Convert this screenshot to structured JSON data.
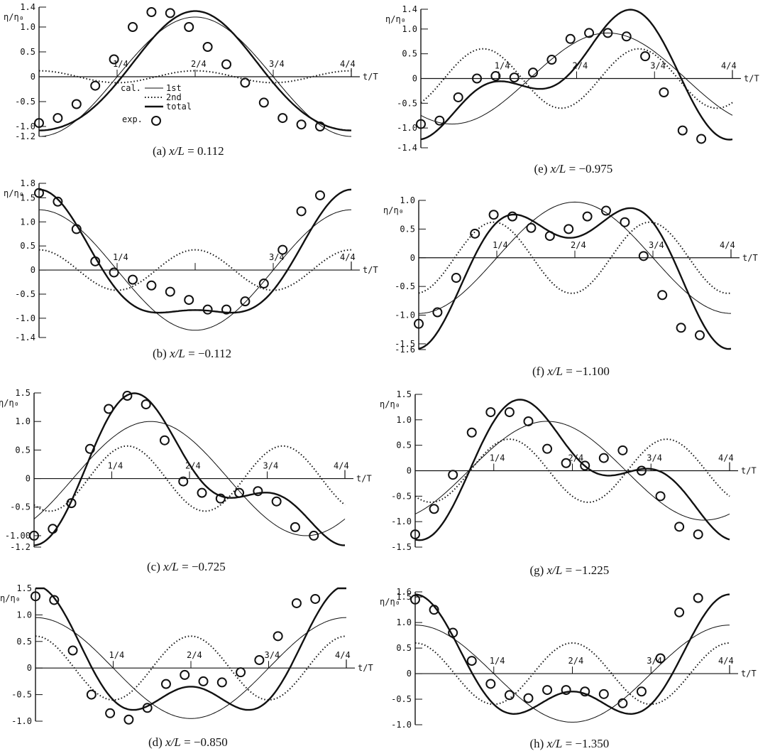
{
  "figure": {
    "y_axis_label": "η/η₀",
    "x_axis_label": "t/T",
    "legend": {
      "cal_label": "cal.",
      "first_label": "1st",
      "second_label": "2nd",
      "total_label": "total",
      "exp_label": "exp."
    },
    "x_tick_labels": [
      "1/4",
      "2/4",
      "3/4",
      "4/4"
    ]
  },
  "chart_data": [
    {
      "panel": "a",
      "type": "line",
      "caption_prefix": "(a) ",
      "caption_var": "x/L",
      "caption_value": "= 0.112",
      "xlim": [
        0,
        1
      ],
      "ylim": [
        -1.2,
        1.4
      ],
      "y_ticks": [
        1.4,
        1.0,
        0.5,
        0,
        -0.5,
        -1.0,
        -1.2
      ],
      "y_tick_labels": [
        "1.4",
        "1.0",
        "0.5",
        "0",
        "-0.5",
        "-1.0",
        "-1.2"
      ],
      "x_tick_labels": [
        "1/4",
        "2/4",
        "3/4",
        "4/4"
      ],
      "series": [
        {
          "name": "1st",
          "style": "thin",
          "A1": 1.2,
          "p1": 0.5
        },
        {
          "name": "2nd",
          "style": "dotted",
          "A2": 0.12,
          "p2": 0.5
        },
        {
          "name": "total",
          "style": "thick"
        }
      ],
      "exp": [
        [
          0,
          -0.93
        ],
        [
          0.06,
          -0.83
        ],
        [
          0.12,
          -0.55
        ],
        [
          0.18,
          -0.18
        ],
        [
          0.24,
          0.35
        ],
        [
          0.3,
          1.0
        ],
        [
          0.36,
          1.3
        ],
        [
          0.42,
          1.28
        ],
        [
          0.48,
          1.0
        ],
        [
          0.54,
          0.6
        ],
        [
          0.6,
          0.25
        ],
        [
          0.66,
          -0.12
        ],
        [
          0.72,
          -0.52
        ],
        [
          0.78,
          -0.83
        ],
        [
          0.84,
          -0.96
        ],
        [
          0.9,
          -1.0
        ]
      ],
      "show_legend": true
    },
    {
      "panel": "b",
      "type": "line",
      "caption_prefix": "(b) ",
      "caption_var": "x/L",
      "caption_value": "= −0.112",
      "xlim": [
        0,
        1
      ],
      "ylim": [
        -1.4,
        1.8
      ],
      "y_ticks": [
        1.8,
        1.5,
        1.0,
        0.5,
        0,
        -0.5,
        -1.0,
        -1.4
      ],
      "y_tick_labels": [
        "1.8",
        "1.5",
        "1.0",
        "0.5",
        "0",
        "-0.5",
        "-1.0",
        "-1.4"
      ],
      "x_tick_labels": [
        "1/4",
        "",
        "3/4",
        "4/4"
      ],
      "series": [
        {
          "name": "1st",
          "style": "thin",
          "A1": 1.25,
          "p1": 0.0
        },
        {
          "name": "2nd",
          "style": "dotted",
          "A2": 0.42,
          "p2": 0.0
        },
        {
          "name": "total",
          "style": "thick"
        }
      ],
      "exp": [
        [
          0,
          1.6
        ],
        [
          0.06,
          1.42
        ],
        [
          0.12,
          0.85
        ],
        [
          0.18,
          0.18
        ],
        [
          0.24,
          -0.05
        ],
        [
          0.3,
          -0.2
        ],
        [
          0.36,
          -0.32
        ],
        [
          0.42,
          -0.45
        ],
        [
          0.48,
          -0.62
        ],
        [
          0.54,
          -0.82
        ],
        [
          0.6,
          -0.82
        ],
        [
          0.66,
          -0.65
        ],
        [
          0.72,
          -0.28
        ],
        [
          0.78,
          0.42
        ],
        [
          0.84,
          1.22
        ],
        [
          0.9,
          1.55
        ]
      ],
      "show_legend": false
    },
    {
      "panel": "c",
      "type": "line",
      "caption_prefix": "(c) ",
      "caption_var": "x/L",
      "caption_value": "= −0.725",
      "xlim": [
        0,
        1
      ],
      "ylim": [
        -1.2,
        1.5
      ],
      "y_ticks": [
        1.5,
        1.0,
        0.5,
        0,
        -0.5,
        -1.0,
        -1.2
      ],
      "y_tick_labels": [
        "1.5",
        "1.0",
        "0.5",
        "0",
        "-0.5",
        "-1.00",
        "-1.2"
      ],
      "x_tick_labels": [
        "1/4",
        "2/4",
        "3/4",
        "4/4"
      ],
      "series": [
        {
          "name": "1st",
          "style": "thin",
          "A1": 1.0,
          "p1": 0.375
        },
        {
          "name": "2nd",
          "style": "dotted",
          "A2": 0.57,
          "p2": 0.3
        },
        {
          "name": "total",
          "style": "thick"
        }
      ],
      "exp": [
        [
          0,
          -1.0
        ],
        [
          0.06,
          -0.88
        ],
        [
          0.12,
          -0.43
        ],
        [
          0.18,
          0.52
        ],
        [
          0.24,
          1.22
        ],
        [
          0.3,
          1.45
        ],
        [
          0.36,
          1.3
        ],
        [
          0.42,
          0.67
        ],
        [
          0.48,
          -0.05
        ],
        [
          0.54,
          -0.25
        ],
        [
          0.6,
          -0.35
        ],
        [
          0.66,
          -0.25
        ],
        [
          0.72,
          -0.22
        ],
        [
          0.78,
          -0.4
        ],
        [
          0.84,
          -0.85
        ],
        [
          0.9,
          -1.0
        ]
      ],
      "show_legend": false
    },
    {
      "panel": "d",
      "type": "line",
      "caption_prefix": "(d) ",
      "caption_var": "x/L",
      "caption_value": "= −0.850",
      "xlim": [
        0,
        1
      ],
      "ylim": [
        -1.0,
        1.5
      ],
      "y_ticks": [
        1.5,
        1.0,
        0.5,
        0,
        -0.5,
        -1.0
      ],
      "y_tick_labels": [
        "1.5",
        "1.0",
        "0.5",
        "0",
        "-0.5",
        "-1.0"
      ],
      "x_tick_labels": [
        "1/4",
        "2/4",
        "3/4",
        "4/4"
      ],
      "series": [
        {
          "name": "1st",
          "style": "thin",
          "A1": 0.95,
          "p1": 0.0
        },
        {
          "name": "2nd",
          "style": "dotted",
          "A2": 0.6,
          "p2": 0.0
        },
        {
          "name": "total",
          "style": "thick"
        }
      ],
      "exp": [
        [
          0,
          1.35
        ],
        [
          0.06,
          1.28
        ],
        [
          0.12,
          0.33
        ],
        [
          0.18,
          -0.5
        ],
        [
          0.24,
          -0.85
        ],
        [
          0.3,
          -0.97
        ],
        [
          0.36,
          -0.75
        ],
        [
          0.42,
          -0.3
        ],
        [
          0.48,
          -0.13
        ],
        [
          0.54,
          -0.25
        ],
        [
          0.6,
          -0.27
        ],
        [
          0.66,
          -0.08
        ],
        [
          0.72,
          0.15
        ],
        [
          0.78,
          0.6
        ],
        [
          0.84,
          1.22
        ],
        [
          0.9,
          1.3
        ]
      ],
      "show_legend": false
    },
    {
      "panel": "e",
      "type": "line",
      "caption_prefix": "(e) ",
      "caption_var": "x/L",
      "caption_value": "= −0.975",
      "xlim": [
        0,
        1
      ],
      "ylim": [
        -1.4,
        1.4
      ],
      "y_ticks": [
        1.4,
        1.0,
        0.5,
        0,
        -0.5,
        -1.0,
        -1.4
      ],
      "y_tick_labels": [
        "1.4",
        "1.0",
        "0.5",
        "0",
        "-0.5",
        "-1.0",
        "-1.4"
      ],
      "x_tick_labels": [
        "1/4",
        "2/4",
        "3/4",
        "4/4"
      ],
      "series": [
        {
          "name": "1st",
          "style": "thin",
          "A1": 0.92,
          "p1": 0.6
        },
        {
          "name": "2nd",
          "style": "dotted",
          "A2": 0.6,
          "p2": 0.2
        },
        {
          "name": "total",
          "style": "thick"
        }
      ],
      "exp": [
        [
          0,
          -0.92
        ],
        [
          0.06,
          -0.85
        ],
        [
          0.12,
          -0.38
        ],
        [
          0.18,
          0.0
        ],
        [
          0.24,
          0.05
        ],
        [
          0.3,
          0.02
        ],
        [
          0.36,
          0.12
        ],
        [
          0.42,
          0.38
        ],
        [
          0.48,
          0.8
        ],
        [
          0.54,
          0.92
        ],
        [
          0.6,
          0.92
        ],
        [
          0.66,
          0.85
        ],
        [
          0.72,
          0.45
        ],
        [
          0.78,
          -0.28
        ],
        [
          0.84,
          -1.05
        ],
        [
          0.9,
          -1.22
        ]
      ],
      "show_legend": false
    },
    {
      "panel": "f",
      "type": "line",
      "caption_prefix": "(f) ",
      "caption_var": "x/L",
      "caption_value": "= −1.100",
      "xlim": [
        0,
        1
      ],
      "ylim": [
        -1.6,
        1.0
      ],
      "y_ticks": [
        1.0,
        0.5,
        0,
        -0.5,
        -1.0,
        -1.5,
        -1.6
      ],
      "y_tick_labels": [
        "1.0",
        "0.5",
        "0",
        "-0.5",
        "-1.0",
        "-1.5",
        "-1.6"
      ],
      "x_tick_labels": [
        "1/4",
        "2/4",
        "3/4",
        "4/4"
      ],
      "series": [
        {
          "name": "1st",
          "style": "thin",
          "A1": 0.97,
          "p1": 0.5
        },
        {
          "name": "2nd",
          "style": "dotted",
          "A2": 0.62,
          "p2": 0.24
        },
        {
          "name": "total",
          "style": "thick"
        }
      ],
      "exp": [
        [
          0,
          -1.15
        ],
        [
          0.06,
          -0.95
        ],
        [
          0.12,
          -0.35
        ],
        [
          0.18,
          0.42
        ],
        [
          0.24,
          0.75
        ],
        [
          0.3,
          0.72
        ],
        [
          0.36,
          0.52
        ],
        [
          0.42,
          0.38
        ],
        [
          0.48,
          0.5
        ],
        [
          0.54,
          0.72
        ],
        [
          0.6,
          0.82
        ],
        [
          0.66,
          0.62
        ],
        [
          0.72,
          0.03
        ],
        [
          0.78,
          -0.65
        ],
        [
          0.84,
          -1.22
        ],
        [
          0.9,
          -1.35
        ]
      ],
      "show_legend": false
    },
    {
      "panel": "g",
      "type": "line",
      "caption_prefix": "(g) ",
      "caption_var": "x/L",
      "caption_value": "= −1.225",
      "xlim": [
        0,
        1
      ],
      "ylim": [
        -1.5,
        1.5
      ],
      "y_ticks": [
        1.5,
        1.0,
        0.5,
        0,
        -0.5,
        -1.0,
        -1.5
      ],
      "y_tick_labels": [
        "1.5",
        "1.0",
        "0.5",
        "0",
        "-0.5",
        "-1.0",
        "-1.5"
      ],
      "x_tick_labels": [
        "1/4",
        "2/4",
        "3/4",
        "4/4"
      ],
      "series": [
        {
          "name": "1st",
          "style": "thin",
          "A1": 0.97,
          "p1": 0.42
        },
        {
          "name": "2nd",
          "style": "dotted",
          "A2": 0.62,
          "p2": 0.3
        },
        {
          "name": "total",
          "style": "thick"
        }
      ],
      "exp": [
        [
          0,
          -1.25
        ],
        [
          0.06,
          -0.75
        ],
        [
          0.12,
          -0.08
        ],
        [
          0.18,
          0.75
        ],
        [
          0.24,
          1.15
        ],
        [
          0.3,
          1.15
        ],
        [
          0.36,
          0.97
        ],
        [
          0.42,
          0.43
        ],
        [
          0.48,
          0.15
        ],
        [
          0.54,
          0.1
        ],
        [
          0.6,
          0.25
        ],
        [
          0.66,
          0.4
        ],
        [
          0.72,
          0.0
        ],
        [
          0.78,
          -0.5
        ],
        [
          0.84,
          -1.1
        ],
        [
          0.9,
          -1.25
        ]
      ],
      "show_legend": false
    },
    {
      "panel": "h",
      "type": "line",
      "caption_prefix": "(h) ",
      "caption_var": "x/L",
      "caption_value": "= −1.350",
      "xlim": [
        0,
        1
      ],
      "ylim": [
        -1.0,
        1.6
      ],
      "y_ticks": [
        1.6,
        1.5,
        1.0,
        0.5,
        0,
        -0.5,
        -1.0
      ],
      "y_tick_labels": [
        "1.6",
        "1.5",
        "1.0",
        "0.5",
        "0",
        "-0.5",
        "-1.0"
      ],
      "x_tick_labels": [
        "1/4",
        "2/4",
        "3/4",
        "4/4"
      ],
      "series": [
        {
          "name": "1st",
          "style": "thin",
          "A1": 0.95,
          "p1": 0.0
        },
        {
          "name": "2nd",
          "style": "dotted",
          "A2": 0.6,
          "p2": 0.0
        },
        {
          "name": "total",
          "style": "thick"
        }
      ],
      "exp": [
        [
          0,
          1.45
        ],
        [
          0.06,
          1.25
        ],
        [
          0.12,
          0.8
        ],
        [
          0.18,
          0.25
        ],
        [
          0.24,
          -0.2
        ],
        [
          0.3,
          -0.42
        ],
        [
          0.36,
          -0.48
        ],
        [
          0.42,
          -0.32
        ],
        [
          0.48,
          -0.32
        ],
        [
          0.54,
          -0.35
        ],
        [
          0.6,
          -0.4
        ],
        [
          0.66,
          -0.58
        ],
        [
          0.72,
          -0.35
        ],
        [
          0.78,
          0.3
        ],
        [
          0.84,
          1.2
        ],
        [
          0.9,
          1.48
        ]
      ],
      "show_legend": false
    }
  ]
}
